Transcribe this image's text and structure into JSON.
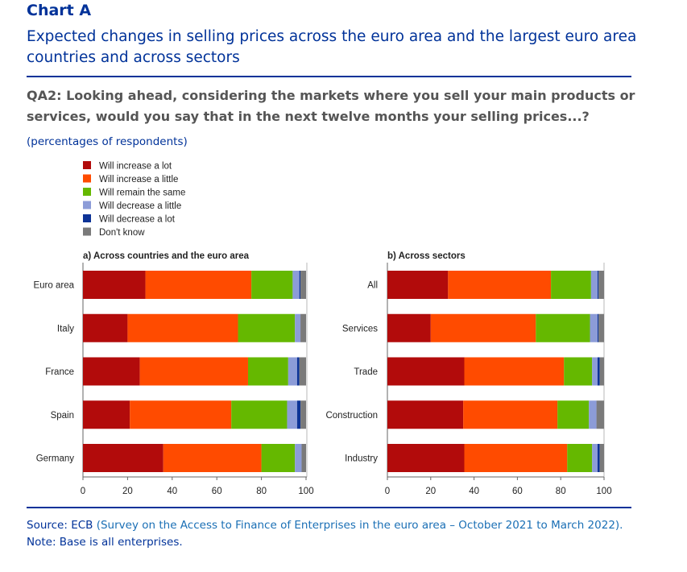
{
  "chart_label": "Chart A",
  "chart_title": "Expected changes in selling prices across the euro area and the largest euro area countries and across sectors",
  "question": "QA2: Looking ahead, considering the markets where you sell your main products or services, would you say that in the next twelve months your selling prices...?",
  "unit": "(percentages of respondents)",
  "source_prefix": "Source: ECB ",
  "source_link": "(Survey on the Access to Finance of Enterprises in the euro area – October 2021 to March 2022).",
  "note": "Note: Base is all enterprises.",
  "colors": {
    "brand": "#003299",
    "series": [
      "#b20b0b",
      "#ff4b00",
      "#65b800",
      "#8c9cd8",
      "#0d3396",
      "#7a7a7a"
    ]
  },
  "chart_data": [
    {
      "type": "bar",
      "orientation": "horizontal",
      "stacked": true,
      "title": "a) Across countries and the euro area",
      "categories": [
        "Euro area",
        "Italy",
        "France",
        "Spain",
        "Germany"
      ],
      "xlim": [
        0,
        100
      ],
      "xticks": [
        0,
        20,
        40,
        60,
        80,
        100
      ],
      "series": [
        {
          "name": "Will increase a lot",
          "values": [
            28,
            20,
            25.5,
            21,
            36
          ]
        },
        {
          "name": "Will increase a little",
          "values": [
            47.5,
            49.5,
            48.5,
            45.5,
            44
          ]
        },
        {
          "name": "Will remain the same",
          "values": [
            18.5,
            25.5,
            18,
            25,
            15
          ]
        },
        {
          "name": "Will decrease a little",
          "values": [
            3,
            2.5,
            4,
            4.5,
            3
          ]
        },
        {
          "name": "Will decrease a lot",
          "values": [
            0.5,
            0,
            1,
            1.5,
            0
          ]
        },
        {
          "name": "Don't know",
          "values": [
            2.5,
            2.5,
            3,
            2.5,
            2
          ]
        }
      ]
    },
    {
      "type": "bar",
      "orientation": "horizontal",
      "stacked": true,
      "title": "b) Across sectors",
      "categories": [
        "All",
        "Services",
        "Trade",
        "Construction",
        "Industry"
      ],
      "xlim": [
        0,
        100
      ],
      "xticks": [
        0,
        20,
        40,
        60,
        80,
        100
      ],
      "series": [
        {
          "name": "Will increase a lot",
          "values": [
            28,
            20,
            35.5,
            35,
            35.5
          ]
        },
        {
          "name": "Will increase a little",
          "values": [
            47.5,
            48.5,
            46,
            43.5,
            47.5
          ]
        },
        {
          "name": "Will remain the same",
          "values": [
            18.5,
            25,
            13,
            14.5,
            11.5
          ]
        },
        {
          "name": "Will decrease a little",
          "values": [
            3,
            3.5,
            2.5,
            3.5,
            2.5
          ]
        },
        {
          "name": "Will decrease a lot",
          "values": [
            0.5,
            0.5,
            1,
            0,
            1
          ]
        },
        {
          "name": "Don't know",
          "values": [
            2.5,
            2.5,
            2,
            3.5,
            2
          ]
        }
      ]
    }
  ]
}
